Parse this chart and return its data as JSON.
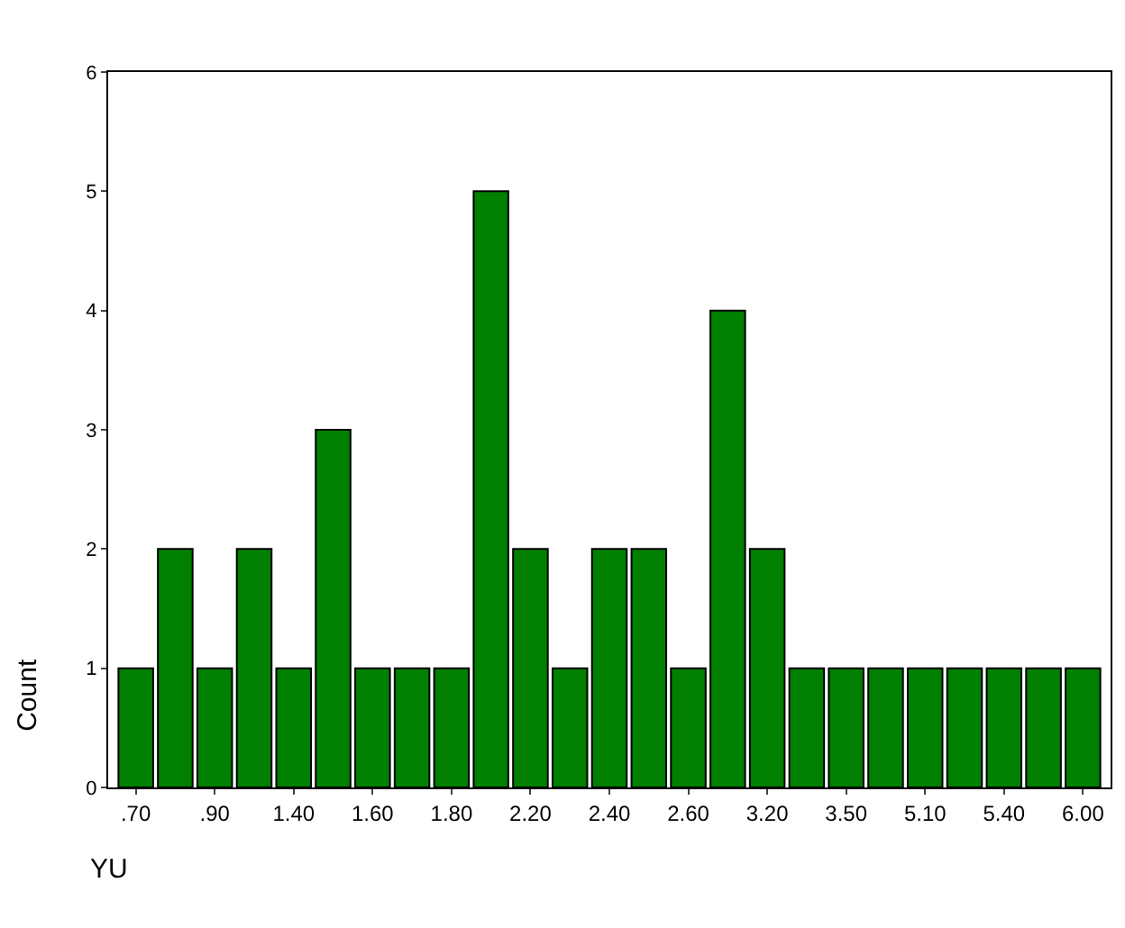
{
  "chart_data": {
    "type": "bar",
    "xlabel": "YU",
    "ylabel": "Count",
    "categories": [
      ".70",
      null,
      ".90",
      null,
      "1.40",
      null,
      "1.60",
      null,
      "1.80",
      null,
      "2.20",
      null,
      "2.40",
      null,
      "2.60",
      null,
      "3.20",
      null,
      "3.50",
      null,
      "5.10",
      null,
      "5.40",
      null,
      "6.00"
    ],
    "values": [
      1,
      2,
      1,
      2,
      1,
      3,
      1,
      1,
      1,
      5,
      2,
      1,
      2,
      2,
      1,
      4,
      2,
      1,
      1,
      1,
      1,
      1,
      1,
      1,
      1
    ],
    "color": "#007f00",
    "ylim": [
      0,
      6
    ],
    "yticks": [
      0,
      1,
      2,
      3,
      4,
      5,
      6
    ],
    "grid": false
  }
}
